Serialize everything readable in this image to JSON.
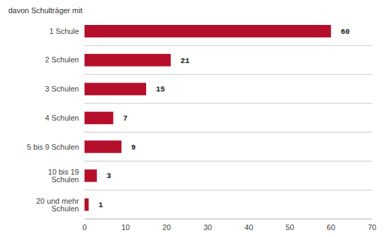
{
  "chart_data": {
    "type": "bar",
    "title": "davon Schulträger mit",
    "orientation": "horizontal",
    "categories": [
      "1 Schule",
      "2 Schulen",
      "3 Schulen",
      "4 Schulen",
      "5 bis 9 Schulen",
      "10 bis 19 Schulen",
      "20 und mehr Schulen"
    ],
    "values": [
      60,
      21,
      15,
      7,
      9,
      3,
      1
    ],
    "color": "#b50f2c",
    "xlim": [
      0,
      70
    ],
    "xticks": [
      0,
      10,
      20,
      30,
      40,
      50,
      60,
      70
    ],
    "grid": true,
    "data_labels": true
  }
}
